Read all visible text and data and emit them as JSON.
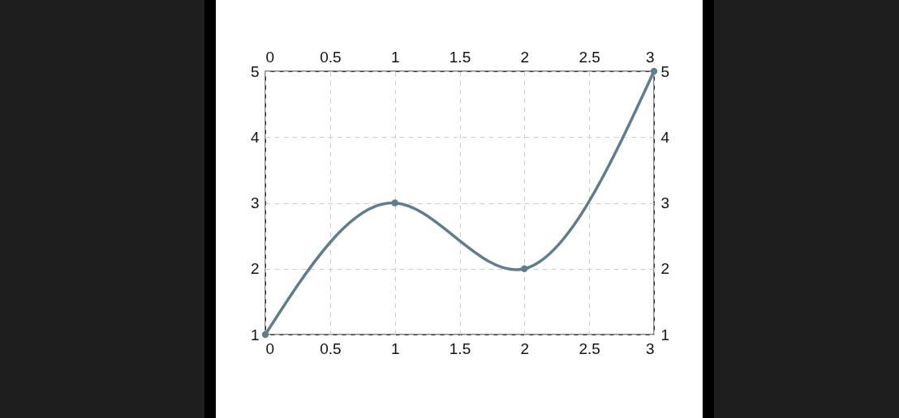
{
  "chart_data": {
    "type": "line",
    "x": [
      0,
      1,
      2,
      3
    ],
    "series": [
      {
        "color": "#607d8b",
        "values": [
          1,
          3,
          2,
          5
        ]
      }
    ],
    "xlim": [
      0,
      3
    ],
    "xticks": [
      0,
      0.5,
      1,
      1.5,
      2,
      2.5,
      3
    ],
    "x2lim": [
      0,
      3
    ],
    "x2ticks": [
      0,
      0.5,
      1,
      1.5,
      2,
      2.5,
      3
    ],
    "ylim": [
      1,
      5
    ],
    "yticks": [
      1,
      2,
      3,
      4,
      5
    ],
    "y2lim": [
      1,
      5
    ],
    "y2ticks": [
      1,
      2,
      3,
      4,
      5
    ],
    "grid": true,
    "marker": "circle",
    "line_style": "solid"
  }
}
